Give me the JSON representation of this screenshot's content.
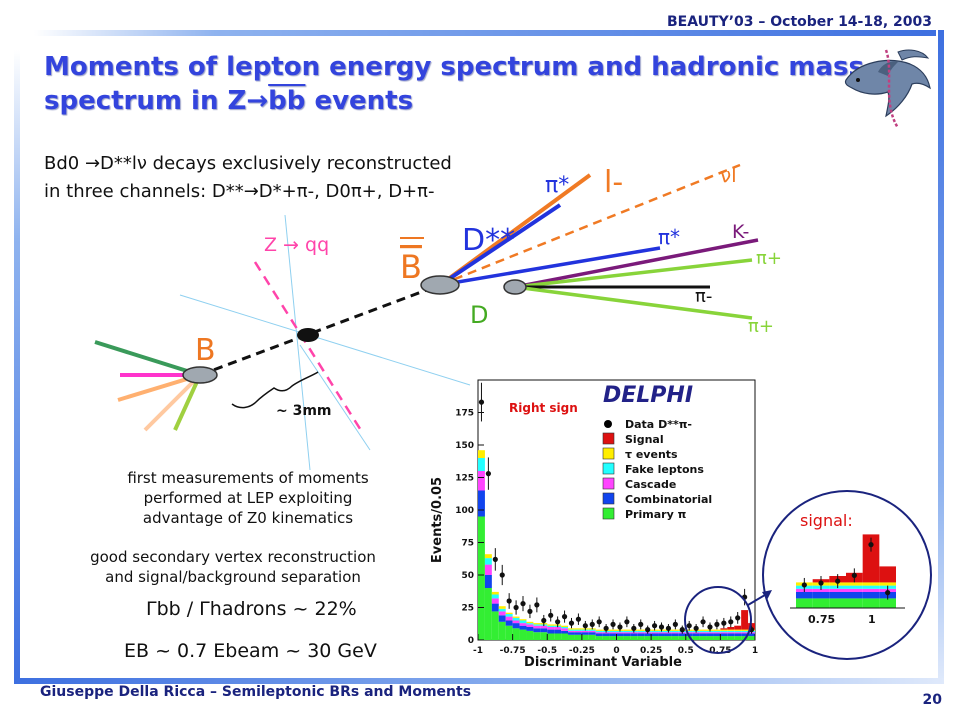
{
  "header": {
    "conference": "BEAUTY’03 – October 14-18, 2003",
    "title_line1": "Moments of lepton energy spectrum and hadronic mass",
    "title_line2_prefix": "spectrum in Z",
    "title_line2_arrow": "→",
    "title_line2_bb": "bb",
    "title_line2_suffix": " events"
  },
  "intro": {
    "line1": "Bd0 →D**lν  decays exclusively reconstructed",
    "line2": "in three channels: D**→D*+π-, D0π+, D+π-"
  },
  "diagram": {
    "z_label": "Z → qq",
    "b_left": "B",
    "b_right": "B",
    "dstarstar": "D**",
    "d_label": "D",
    "lepton": "l-",
    "neutrino": "νl",
    "pi_star_top": "π*",
    "pi_star_mid": "π*",
    "kaon": "K-",
    "pi_plus_top": "π+",
    "pi_minus": "π-",
    "pi_plus_bottom": "π+",
    "distance": "~ 3mm",
    "colors": {
      "lepton_track": "#f07a24",
      "dstar_track": "#2233dd",
      "pion_track": "#88d43a",
      "kaon_track": "#7a1a7a",
      "dashed_accent": "#ff44aa"
    }
  },
  "notes": {
    "first_line1": "first measurements of moments",
    "first_line2": "performed at LEP exploiting",
    "first_line3": "advantage of Z0 kinematics",
    "second_line1": "good secondary vertex reconstruction",
    "second_line2": "and signal/background separation",
    "gamma_ratio": "Γbb / Γhadrons ~ 22%",
    "energy": "EB ~ 0.7 Ebeam ~ 30 GeV"
  },
  "chart_data": {
    "type": "bar",
    "title": "DELPHI",
    "annotation": "Right sign",
    "xlabel": "Discriminant Variable",
    "ylabel": "Events/0.05",
    "xlim": [
      -1,
      1
    ],
    "ylim": [
      0,
      200
    ],
    "x_ticks": [
      "-1",
      "-0.75",
      "-0.5",
      "-0.25",
      "0",
      "0.25",
      "0.5",
      "0.75",
      "1"
    ],
    "y_ticks": [
      "0",
      "25",
      "50",
      "75",
      "100",
      "125",
      "150",
      "175"
    ],
    "legend_position": "top-right",
    "legend": [
      {
        "label": "Data D**π-",
        "marker": "dot",
        "color": "#000000"
      },
      {
        "label": "Signal",
        "marker": "box",
        "color": "#dd1111"
      },
      {
        "label": "τ events",
        "marker": "box",
        "color": "#ffee00"
      },
      {
        "label": "Fake leptons",
        "marker": "box",
        "color": "#22ffff"
      },
      {
        "label": "Cascade",
        "marker": "box",
        "color": "#ff44ff"
      },
      {
        "label": "Combinatorial",
        "marker": "box",
        "color": "#1144ee"
      },
      {
        "label": "Primary π",
        "marker": "box",
        "color": "#33ee33"
      }
    ],
    "bins_x": [
      -0.975,
      -0.925,
      -0.875,
      -0.825,
      -0.775,
      -0.725,
      -0.675,
      -0.625,
      -0.575,
      -0.525,
      -0.475,
      -0.425,
      -0.375,
      -0.325,
      -0.275,
      -0.225,
      -0.175,
      -0.125,
      -0.075,
      -0.025,
      0.025,
      0.075,
      0.125,
      0.175,
      0.225,
      0.275,
      0.325,
      0.375,
      0.425,
      0.475,
      0.525,
      0.575,
      0.625,
      0.675,
      0.725,
      0.775,
      0.825,
      0.875,
      0.925,
      0.975
    ],
    "series": [
      {
        "name": "Primary π",
        "color": "#33ee33",
        "values": [
          95,
          40,
          22,
          14,
          11,
          9,
          8,
          7,
          6,
          6,
          5,
          5,
          5,
          4,
          4,
          4,
          4,
          3,
          3,
          3,
          3,
          3,
          3,
          3,
          3,
          3,
          3,
          3,
          3,
          3,
          3,
          3,
          3,
          3,
          3,
          3,
          3,
          3,
          3,
          3
        ]
      },
      {
        "name": "Combinatorial",
        "color": "#1144ee",
        "values": [
          20,
          10,
          6,
          5,
          4,
          4,
          3,
          3,
          3,
          3,
          3,
          3,
          2,
          2,
          2,
          2,
          2,
          2,
          2,
          2,
          2,
          2,
          2,
          2,
          2,
          2,
          2,
          2,
          2,
          2,
          2,
          2,
          2,
          2,
          2,
          2,
          2,
          2,
          2,
          2
        ]
      },
      {
        "name": "Cascade",
        "color": "#ff44ff",
        "values": [
          15,
          8,
          4,
          3,
          3,
          2,
          2,
          2,
          2,
          2,
          2,
          2,
          2,
          1,
          1,
          1,
          1,
          1,
          1,
          1,
          1,
          1,
          1,
          1,
          1,
          1,
          1,
          1,
          1,
          1,
          1,
          1,
          1,
          1,
          1,
          1,
          1,
          1,
          1,
          1
        ]
      },
      {
        "name": "Fake leptons",
        "color": "#22ffff",
        "values": [
          10,
          5,
          3,
          2,
          2,
          2,
          2,
          1,
          1,
          1,
          1,
          1,
          1,
          1,
          1,
          1,
          1,
          1,
          1,
          1,
          1,
          1,
          1,
          1,
          1,
          1,
          1,
          1,
          1,
          1,
          1,
          1,
          1,
          1,
          1,
          1,
          1,
          1,
          1,
          1
        ]
      },
      {
        "name": "τ events",
        "color": "#ffee00",
        "values": [
          6,
          3,
          2,
          2,
          1,
          1,
          1,
          1,
          1,
          1,
          1,
          1,
          1,
          1,
          1,
          1,
          1,
          1,
          1,
          1,
          1,
          1,
          1,
          1,
          1,
          1,
          1,
          1,
          1,
          1,
          1,
          1,
          1,
          1,
          1,
          1,
          1,
          1,
          1,
          1
        ]
      },
      {
        "name": "Signal",
        "color": "#dd1111",
        "values": [
          0,
          0,
          0,
          0,
          0,
          0,
          0,
          0,
          0,
          0,
          0,
          0,
          0,
          0,
          0,
          0,
          0,
          0,
          0,
          0,
          0,
          0,
          0,
          0,
          0,
          0,
          0,
          0,
          0,
          0,
          0,
          0,
          0,
          0,
          0,
          1,
          2,
          3,
          15,
          5
        ]
      }
    ],
    "data_points": [
      {
        "x": -0.975,
        "y": 183
      },
      {
        "x": -0.925,
        "y": 128
      },
      {
        "x": -0.875,
        "y": 62
      },
      {
        "x": -0.825,
        "y": 50
      },
      {
        "x": -0.775,
        "y": 30
      },
      {
        "x": -0.725,
        "y": 25
      },
      {
        "x": -0.675,
        "y": 28
      },
      {
        "x": -0.625,
        "y": 22
      },
      {
        "x": -0.575,
        "y": 27
      },
      {
        "x": -0.525,
        "y": 15
      },
      {
        "x": -0.475,
        "y": 19
      },
      {
        "x": -0.425,
        "y": 14
      },
      {
        "x": -0.375,
        "y": 18
      },
      {
        "x": -0.325,
        "y": 13
      },
      {
        "x": -0.275,
        "y": 16
      },
      {
        "x": -0.225,
        "y": 11
      },
      {
        "x": -0.175,
        "y": 12
      },
      {
        "x": -0.125,
        "y": 14
      },
      {
        "x": -0.075,
        "y": 9
      },
      {
        "x": -0.025,
        "y": 12
      },
      {
        "x": 0.025,
        "y": 10
      },
      {
        "x": 0.075,
        "y": 14
      },
      {
        "x": 0.125,
        "y": 9
      },
      {
        "x": 0.175,
        "y": 12
      },
      {
        "x": 0.225,
        "y": 8
      },
      {
        "x": 0.275,
        "y": 11
      },
      {
        "x": 0.325,
        "y": 10
      },
      {
        "x": 0.375,
        "y": 9
      },
      {
        "x": 0.425,
        "y": 12
      },
      {
        "x": 0.475,
        "y": 8
      },
      {
        "x": 0.525,
        "y": 11
      },
      {
        "x": 0.575,
        "y": 9
      },
      {
        "x": 0.625,
        "y": 14
      },
      {
        "x": 0.675,
        "y": 10
      },
      {
        "x": 0.725,
        "y": 12
      },
      {
        "x": 0.775,
        "y": 13
      },
      {
        "x": 0.825,
        "y": 14
      },
      {
        "x": 0.875,
        "y": 17
      },
      {
        "x": 0.925,
        "y": 33
      },
      {
        "x": 0.975,
        "y": 8
      }
    ],
    "inset": {
      "label": "signal:",
      "x_ticks": [
        "0.75",
        "1"
      ]
    }
  },
  "footer": {
    "author": "Giuseppe Della Ricca – Semileptonic BRs and Moments",
    "page": "20"
  }
}
